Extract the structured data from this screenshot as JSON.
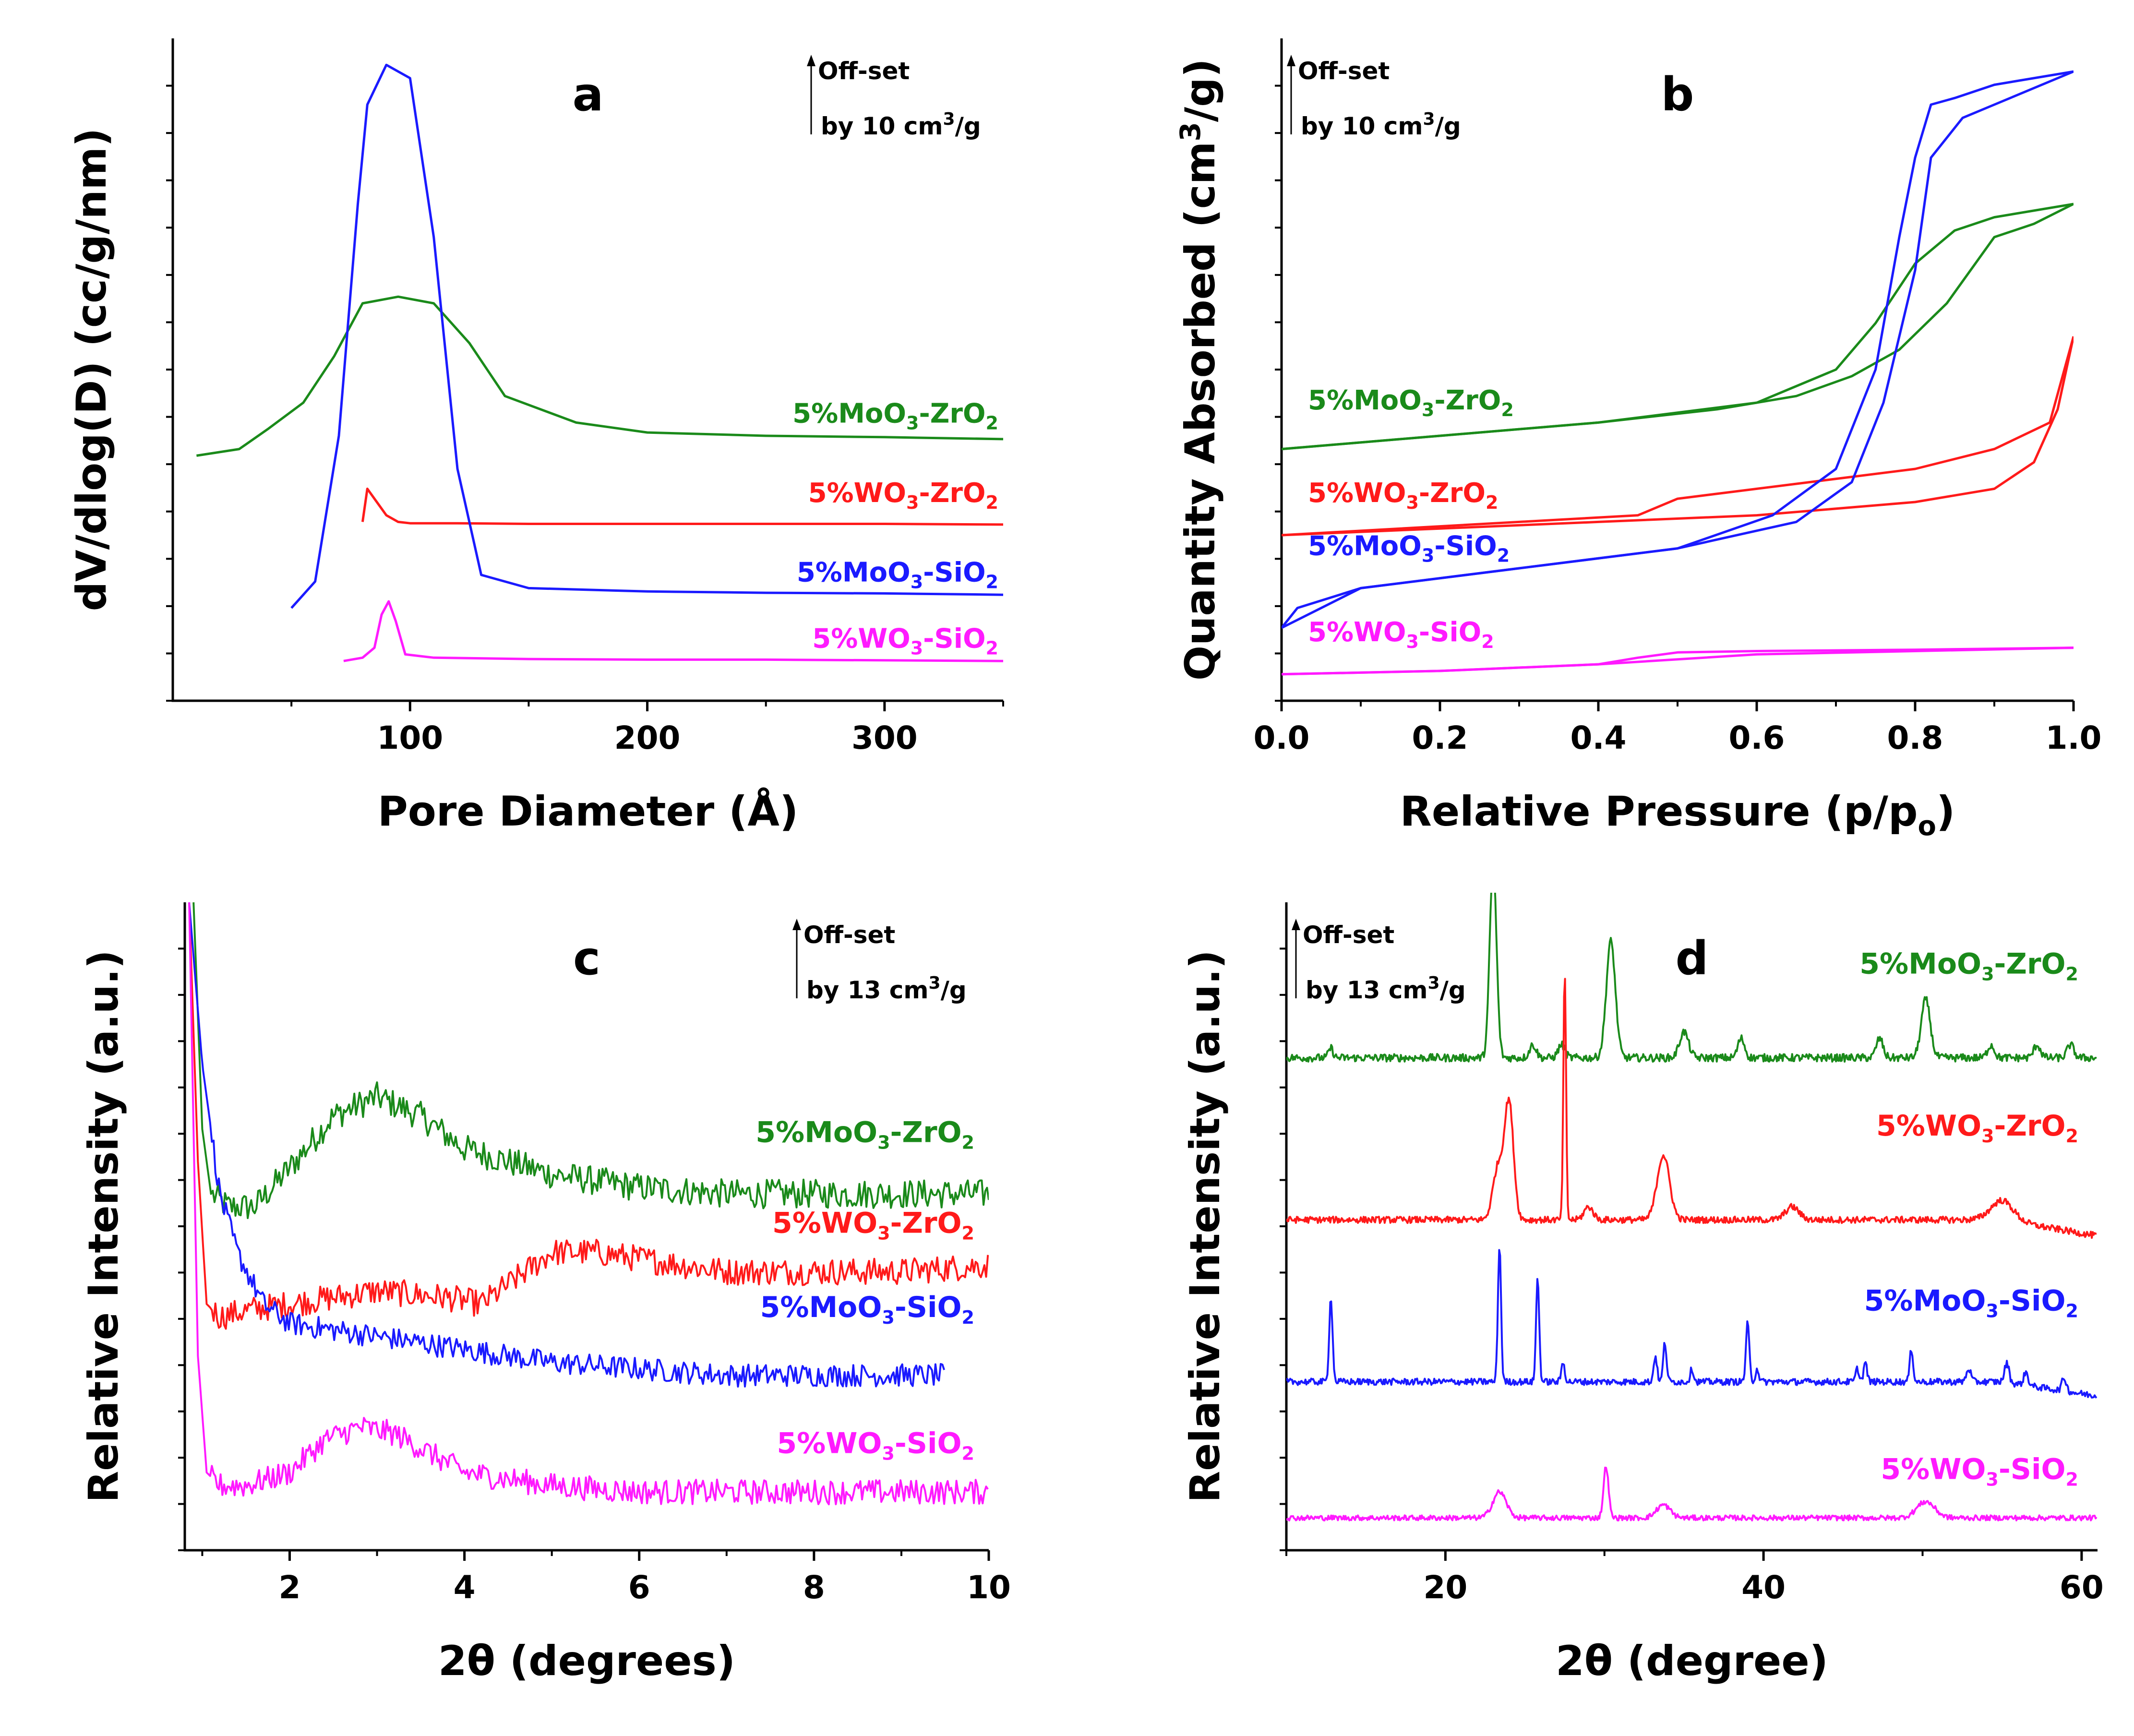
{
  "figure": {
    "colors": {
      "MoO3-ZrO2": "#1a8a1a",
      "WO3-ZrO2": "#ff1a1a",
      "MoO3-SiO2": "#1a1aff",
      "WO3-SiO2": "#ff1aff"
    }
  },
  "chart_data": [
    {
      "panel": "a",
      "type": "line",
      "title": "a",
      "xlabel": "Pore Diameter (Å)",
      "ylabel": "dV/dlog(D) (cc/g/nm)",
      "xlim": [
        0,
        350
      ],
      "ylim": [
        0,
        100
      ],
      "xticks": [
        "100",
        "200",
        "300"
      ],
      "xtick_values": [
        100,
        200,
        300
      ],
      "offset_note": {
        "line1": "Off-set",
        "line2_prefix": "by 10 cm",
        "line2_sup": "3",
        "line2_suffix": "/g"
      },
      "series": [
        {
          "key": "MoO3-ZrO2",
          "label": {
            "a": "5%MoO",
            "sub1": "3",
            "b": "-ZrO",
            "sub2": "2"
          },
          "x": [
            10,
            28,
            40,
            55,
            68,
            80,
            95,
            110,
            125,
            140,
            170,
            200,
            250,
            300,
            350
          ],
          "y": [
            37,
            38,
            41,
            45,
            52,
            60,
            61,
            60,
            54,
            46,
            42,
            40.5,
            40,
            39.8,
            39.5
          ],
          "label_y": 42
        },
        {
          "key": "WO3-ZrO2",
          "label": {
            "a": "5%WO",
            "sub1": "3",
            "b": "-ZrO",
            "sub2": "2"
          },
          "x": [
            80,
            82,
            86,
            90,
            95,
            100,
            120,
            150,
            200,
            250,
            300,
            350
          ],
          "y": [
            27,
            32,
            30,
            28,
            27,
            26.8,
            26.8,
            26.7,
            26.7,
            26.7,
            26.7,
            26.6
          ],
          "label_y": 30
        },
        {
          "key": "MoO3-SiO2",
          "label": {
            "a": "5%MoO",
            "sub1": "3",
            "b": "-SiO",
            "sub2": "2"
          },
          "x": [
            50,
            60,
            70,
            78,
            82,
            90,
            100,
            110,
            120,
            130,
            150,
            200,
            250,
            300,
            350
          ],
          "y": [
            14,
            18,
            40,
            75,
            90,
            96,
            94,
            70,
            35,
            19,
            17,
            16.5,
            16.3,
            16.2,
            16
          ],
          "label_y": 18
        },
        {
          "key": "WO3-SiO2",
          "label": {
            "a": "5%WO",
            "sub1": "3",
            "b": "-SiO",
            "sub2": "2"
          },
          "x": [
            72,
            80,
            85,
            88,
            91,
            94,
            98,
            110,
            150,
            200,
            250,
            300,
            350
          ],
          "y": [
            6,
            6.5,
            8,
            13,
            15,
            12,
            7,
            6.5,
            6.3,
            6.2,
            6.2,
            6.1,
            6
          ],
          "label_y": 8
        }
      ]
    },
    {
      "panel": "b",
      "type": "line",
      "title": "b",
      "xlabel": "Relative Pressure (p/p",
      "xlabel_sub": "o",
      "xlabel_end": ")",
      "ylabel_prefix": "Quantity Absorbed (cm",
      "ylabel_sup": "3",
      "ylabel_suffix": "/g)",
      "xlim": [
        0,
        1
      ],
      "ylim": [
        0,
        100
      ],
      "xticks": [
        "0.0",
        "0.2",
        "0.4",
        "0.6",
        "0.8",
        "1.0"
      ],
      "xtick_values": [
        0,
        0.2,
        0.4,
        0.6,
        0.8,
        1.0
      ],
      "offset_note": {
        "line1": "Off-set",
        "line2_prefix": "by 10 cm",
        "line2_sup": "3",
        "line2_suffix": "/g"
      },
      "series": [
        {
          "key": "MoO3-ZrO2",
          "label": {
            "a": "5%MoO",
            "sub1": "3",
            "b": "-ZrO",
            "sub2": "2"
          },
          "adsorption": {
            "x": [
              0.0,
              0.2,
              0.4,
              0.55,
              0.65,
              0.72,
              0.78,
              0.84,
              0.9,
              0.95,
              1.0
            ],
            "y": [
              38,
              40,
              42,
              44,
              46,
              49,
              53,
              60,
              70,
              72,
              75
            ]
          },
          "desorption": {
            "x": [
              1.0,
              0.9,
              0.85,
              0.8,
              0.75,
              0.7,
              0.6,
              0.4,
              0.2,
              0.0
            ],
            "y": [
              75,
              73,
              71,
              66,
              57,
              50,
              45,
              42,
              40,
              38
            ]
          },
          "label_y": 44
        },
        {
          "key": "WO3-ZrO2",
          "label": {
            "a": "5%WO",
            "sub1": "3",
            "b": "-ZrO",
            "sub2": "2"
          },
          "adsorption": {
            "x": [
              0.0,
              0.2,
              0.4,
              0.6,
              0.8,
              0.9,
              0.95,
              0.98,
              1.0
            ],
            "y": [
              25,
              26,
              27,
              28,
              30,
              32,
              36,
              44,
              55
            ]
          },
          "desorption": {
            "x": [
              1.0,
              0.97,
              0.9,
              0.8,
              0.6,
              0.5,
              0.45,
              0.3,
              0.0
            ],
            "y": [
              55,
              42,
              38,
              35,
              32,
              30.5,
              28,
              27,
              25
            ]
          },
          "label_y": 30
        },
        {
          "key": "MoO3-SiO2",
          "label": {
            "a": "5%MoO",
            "sub1": "3",
            "b": "-SiO",
            "sub2": "2"
          },
          "adsorption": {
            "x": [
              0.0,
              0.02,
              0.1,
              0.3,
              0.5,
              0.65,
              0.72,
              0.76,
              0.8,
              0.82,
              0.86,
              0.9,
              1.0
            ],
            "y": [
              11,
              14,
              17,
              20,
              23,
              27,
              33,
              45,
              65,
              82,
              88,
              90,
              95
            ]
          },
          "desorption": {
            "x": [
              1.0,
              0.9,
              0.85,
              0.82,
              0.8,
              0.78,
              0.75,
              0.7,
              0.62,
              0.5,
              0.3,
              0.1,
              0.0
            ],
            "y": [
              95,
              93,
              91,
              90,
              82,
              70,
              50,
              35,
              28,
              23,
              20,
              17,
              11
            ]
          },
          "label_y": 22
        },
        {
          "key": "WO3-SiO2",
          "label": {
            "a": "5%WO",
            "sub1": "3",
            "b": "-SiO",
            "sub2": "2"
          },
          "adsorption": {
            "x": [
              0.0,
              0.2,
              0.4,
              0.6,
              0.8,
              1.0
            ],
            "y": [
              4,
              4.5,
              5.5,
              7,
              7.5,
              8
            ]
          },
          "desorption": {
            "x": [
              1.0,
              0.8,
              0.6,
              0.5,
              0.45,
              0.4,
              0.2,
              0.0
            ],
            "y": [
              8,
              7.7,
              7.5,
              7.3,
              6.5,
              5.5,
              4.5,
              4
            ]
          },
          "label_y": 9
        }
      ]
    },
    {
      "panel": "c",
      "type": "line",
      "title": "c",
      "xlabel": "2θ (degrees)",
      "ylabel": "Relative Intensity (a.u.)",
      "xlim": [
        0.8,
        10
      ],
      "ylim": [
        0,
        100
      ],
      "xticks": [
        "2",
        "4",
        "6",
        "8",
        "10"
      ],
      "xtick_values": [
        2,
        4,
        6,
        8,
        10
      ],
      "offset_note": {
        "line1": "Off-set",
        "line2_prefix": "by 13 cm",
        "line2_sup": "3",
        "line2_suffix": "/g"
      },
      "series": [
        {
          "key": "MoO3-ZrO2",
          "label": {
            "a": "5%MoO",
            "sub1": "3",
            "b": "-ZrO",
            "sub2": "2"
          },
          "x": [
            0.9,
            1.0,
            1.1,
            1.3,
            1.6,
            2.0,
            2.5,
            3.0,
            3.5,
            4.0,
            5.0,
            6.0,
            7.0,
            8.0,
            9.0,
            10.0
          ],
          "y": [
            100,
            65,
            55,
            53,
            53,
            59,
            67,
            70,
            67,
            62,
            58,
            56,
            55,
            55,
            55,
            55
          ],
          "noise": 1.4,
          "label_y": 63
        },
        {
          "key": "WO3-ZrO2",
          "label": {
            "a": "5%WO",
            "sub1": "3",
            "b": "-ZrO",
            "sub2": "2"
          },
          "x": [
            0.85,
            0.95,
            1.05,
            1.2,
            1.5,
            2.0,
            3.0,
            3.8,
            4.2,
            4.6,
            5.0,
            5.5,
            6.0,
            6.5,
            7.0,
            8.0,
            9.0,
            10.0
          ],
          "y": [
            100,
            60,
            38,
            36,
            37,
            38,
            40,
            39,
            38,
            42,
            46,
            46,
            45,
            44,
            43,
            43,
            43,
            44
          ],
          "noise": 1.3,
          "label_y": 49
        },
        {
          "key": "MoO3-SiO2",
          "label": {
            "a": "5%MoO",
            "sub1": "3",
            "b": "-SiO",
            "sub2": "2"
          },
          "x": [
            0.85,
            1.0,
            1.2,
            1.4,
            1.7,
            2.0,
            2.5,
            3.0,
            4.0,
            5.0,
            6.0,
            7.0,
            8.0,
            9.0,
            9.5
          ],
          "y": [
            100,
            75,
            55,
            46,
            38,
            35,
            34,
            33,
            31,
            29,
            28,
            27,
            27,
            27,
            27
          ],
          "noise": 1.1,
          "label_y": 36
        },
        {
          "key": "WO3-SiO2",
          "label": {
            "a": "5%WO",
            "sub1": "3",
            "b": "-SiO",
            "sub2": "2"
          },
          "x": [
            0.85,
            0.95,
            1.05,
            1.2,
            1.5,
            2.0,
            2.4,
            2.8,
            3.2,
            3.6,
            4.0,
            5.0,
            6.0,
            7.0,
            8.0,
            9.0,
            10.0
          ],
          "y": [
            100,
            30,
            12,
            10,
            10,
            12,
            17,
            19,
            18,
            15,
            12,
            10,
            9,
            9,
            9,
            9,
            9
          ],
          "noise": 1.2,
          "label_y": 15
        }
      ]
    },
    {
      "panel": "d",
      "type": "line",
      "title": "d",
      "xlabel": "2θ (degree)",
      "ylabel": "Relative Intensity (a.u.)",
      "xlim": [
        10,
        61
      ],
      "ylim": [
        0,
        100
      ],
      "xticks": [
        "20",
        "40",
        "60"
      ],
      "xtick_values": [
        20,
        40,
        60
      ],
      "offset_note": {
        "line1": "Off-set",
        "line2_prefix": "by 13 cm",
        "line2_sup": "3",
        "line2_suffix": "/g"
      },
      "series": [
        {
          "key": "MoO3-ZrO2",
          "label": {
            "a": "5%MoO",
            "sub1": "3",
            "b": "-ZrO",
            "sub2": "2"
          },
          "baseline": 76,
          "peaks": [
            [
              12.8,
              1.5,
              0.2
            ],
            [
              23.0,
              30,
              0.3
            ],
            [
              25.5,
              2,
              0.3
            ],
            [
              27.3,
              2,
              0.3
            ],
            [
              30.4,
              18,
              0.4
            ],
            [
              35.0,
              4,
              0.4
            ],
            [
              38.6,
              3,
              0.3
            ],
            [
              47.3,
              3,
              0.3
            ],
            [
              50.2,
              9,
              0.4
            ],
            [
              54.3,
              2,
              0.3
            ],
            [
              57.2,
              2,
              0.3
            ],
            [
              59.3,
              2,
              0.3
            ]
          ],
          "noise": 0.6,
          "label_y": 89
        },
        {
          "key": "WO3-ZrO2",
          "label": {
            "a": "5%WO",
            "sub1": "3",
            "b": "-ZrO",
            "sub2": "2"
          },
          "baseline": 51,
          "peaks": [
            [
              23.3,
              8,
              0.45
            ],
            [
              24.0,
              18,
              0.4
            ],
            [
              27.5,
              38,
              0.12
            ],
            [
              29.0,
              2,
              0.4
            ],
            [
              33.7,
              10,
              0.55
            ],
            [
              41.8,
              2,
              0.6
            ],
            [
              55.0,
              3,
              1.0
            ]
          ],
          "noise": 0.5,
          "slope_end": -2.5,
          "label_y": 64
        },
        {
          "key": "MoO3-SiO2",
          "label": {
            "a": "5%MoO",
            "sub1": "3",
            "b": "-SiO",
            "sub2": "2"
          },
          "baseline": 26,
          "peaks": [
            [
              12.8,
              13,
              0.15
            ],
            [
              23.4,
              21,
              0.14
            ],
            [
              25.8,
              16,
              0.14
            ],
            [
              27.4,
              3,
              0.15
            ],
            [
              33.2,
              4,
              0.15
            ],
            [
              33.8,
              6,
              0.15
            ],
            [
              35.5,
              2,
              0.15
            ],
            [
              39.0,
              9,
              0.15
            ],
            [
              39.6,
              2,
              0.15
            ],
            [
              45.9,
              2,
              0.15
            ],
            [
              46.4,
              3,
              0.15
            ],
            [
              49.3,
              5,
              0.15
            ],
            [
              52.9,
              2,
              0.2
            ],
            [
              55.3,
              3,
              0.2
            ],
            [
              56.5,
              2,
              0.2
            ],
            [
              58.9,
              2,
              0.2
            ]
          ],
          "noise": 0.5,
          "slope_end": -2.2,
          "label_y": 37
        },
        {
          "key": "WO3-SiO2",
          "label": {
            "a": "5%WO",
            "sub1": "3",
            "b": "-SiO",
            "sub2": "2"
          },
          "baseline": 5,
          "peaks": [
            [
              23.4,
              4,
              0.6
            ],
            [
              30.1,
              8,
              0.22
            ],
            [
              33.7,
              2,
              0.6
            ],
            [
              50.2,
              2.5,
              0.8
            ]
          ],
          "noise": 0.4,
          "label_y": 11
        }
      ]
    }
  ]
}
